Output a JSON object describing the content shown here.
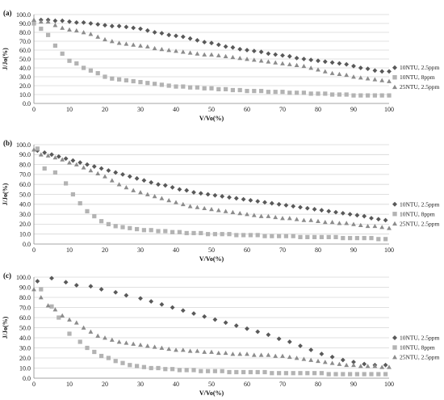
{
  "chart_data": [
    {
      "panel_label": "(a)",
      "type": "scatter",
      "xlabel": "V/Vo(%)",
      "ylabel": "J/Jo(%)",
      "xlim": [
        0,
        100
      ],
      "ylim": [
        0,
        100
      ],
      "x_ticks": [
        0,
        10,
        20,
        30,
        40,
        50,
        60,
        70,
        80,
        90,
        100
      ],
      "y_ticks": [
        "0.0",
        "10.0",
        "20.0",
        "30.0",
        "40.0",
        "50.0",
        "60.0",
        "70.0",
        "80.0",
        "90.0",
        "100.0"
      ],
      "grid": true,
      "legend_position": "right",
      "series": [
        {
          "name": "10NTU, 2.5ppm",
          "marker": "diamond",
          "color": "#595959",
          "x": [
            0,
            2,
            4,
            6,
            8,
            10,
            12,
            14,
            16,
            18,
            20,
            22,
            24,
            26,
            28,
            30,
            32,
            34,
            36,
            38,
            40,
            42,
            44,
            46,
            48,
            50,
            52,
            54,
            56,
            58,
            60,
            62,
            64,
            66,
            68,
            70,
            72,
            74,
            76,
            78,
            80,
            82,
            84,
            86,
            88,
            90,
            92,
            94,
            96,
            98,
            100
          ],
          "y": [
            92,
            94,
            94,
            93,
            93,
            92,
            91,
            91,
            90,
            89,
            88,
            87,
            87,
            86,
            85,
            84,
            82,
            80,
            79,
            77,
            76,
            75,
            73,
            71,
            69,
            68,
            66,
            64,
            63,
            61,
            60,
            59,
            58,
            56,
            55,
            54,
            53,
            51,
            50,
            49,
            48,
            47,
            46,
            45,
            44,
            42,
            40,
            39,
            37,
            36,
            36
          ]
        },
        {
          "name": "10NTU, 8ppm",
          "marker": "square",
          "color": "#b3b3b3",
          "x": [
            0,
            2,
            4,
            6,
            8,
            10,
            12,
            14,
            16,
            18,
            20,
            22,
            24,
            26,
            28,
            30,
            32,
            34,
            36,
            38,
            40,
            42,
            44,
            46,
            48,
            50,
            52,
            54,
            56,
            58,
            60,
            62,
            64,
            66,
            68,
            70,
            72,
            74,
            76,
            78,
            80,
            82,
            84,
            86,
            88,
            90,
            92,
            94,
            96,
            98,
            100
          ],
          "y": [
            90,
            84,
            77,
            65,
            56,
            48,
            45,
            40,
            37,
            34,
            30,
            28,
            27,
            26,
            25,
            24,
            23,
            22,
            21,
            20,
            19,
            19,
            18,
            18,
            17,
            17,
            16,
            16,
            15,
            15,
            14,
            14,
            14,
            13,
            13,
            13,
            12,
            12,
            12,
            11,
            11,
            11,
            10,
            10,
            10,
            9,
            9,
            9,
            9,
            9,
            9
          ]
        },
        {
          "name": "25NTU, 2.5ppm",
          "marker": "triangle",
          "color": "#8c8c8c",
          "x": [
            0,
            2,
            4,
            6,
            8,
            10,
            12,
            14,
            16,
            18,
            20,
            22,
            24,
            26,
            28,
            30,
            32,
            34,
            36,
            38,
            40,
            42,
            44,
            46,
            48,
            50,
            52,
            54,
            56,
            58,
            60,
            62,
            64,
            66,
            68,
            70,
            72,
            74,
            76,
            78,
            80,
            82,
            84,
            86,
            88,
            90,
            92,
            94,
            96,
            98,
            100
          ],
          "y": [
            94,
            92,
            92,
            88,
            85,
            83,
            82,
            80,
            78,
            75,
            72,
            70,
            68,
            67,
            66,
            65,
            64,
            62,
            61,
            60,
            59,
            58,
            57,
            56,
            55,
            55,
            54,
            53,
            52,
            51,
            50,
            49,
            48,
            47,
            46,
            45,
            44,
            43,
            42,
            40,
            38,
            36,
            34,
            33,
            32,
            30,
            29,
            28,
            27,
            26,
            25
          ]
        }
      ]
    },
    {
      "panel_label": "(b)",
      "type": "scatter",
      "xlabel": "V/Vo(%)",
      "ylabel": "J/Jo(%)",
      "xlim": [
        0,
        100
      ],
      "ylim": [
        0,
        100
      ],
      "x_ticks": [
        0,
        10,
        20,
        30,
        40,
        50,
        60,
        70,
        80,
        90,
        100
      ],
      "y_ticks": [
        "0.0",
        "10.0",
        "20.0",
        "30.0",
        "40.0",
        "50.0",
        "60.0",
        "70.0",
        "80.0",
        "90.0",
        "100.0"
      ],
      "grid": true,
      "legend_position": "right",
      "series": [
        {
          "name": "10NTU, 2.5ppm",
          "marker": "diamond",
          "color": "#595959",
          "x": [
            1,
            3,
            5,
            7,
            9,
            11,
            13,
            15,
            17,
            19,
            21,
            23,
            25,
            27,
            29,
            31,
            33,
            35,
            37,
            39,
            41,
            43,
            45,
            47,
            49,
            51,
            53,
            55,
            57,
            59,
            61,
            63,
            65,
            67,
            69,
            71,
            73,
            75,
            77,
            79,
            81,
            83,
            85,
            87,
            89,
            91,
            93,
            95,
            97,
            99
          ],
          "y": [
            94,
            92,
            90,
            88,
            86,
            84,
            82,
            80,
            78,
            76,
            74,
            72,
            70,
            68,
            66,
            64,
            62,
            60,
            59,
            57,
            55,
            54,
            52,
            51,
            50,
            49,
            48,
            47,
            46,
            45,
            44,
            43,
            42,
            41,
            40,
            39,
            38,
            37,
            36,
            35,
            34,
            33,
            32,
            31,
            30,
            29,
            28,
            26,
            25,
            24
          ]
        },
        {
          "name": "10NTU, 8ppm",
          "marker": "square",
          "color": "#b3b3b3",
          "x": [
            1,
            3,
            6,
            9,
            11,
            13,
            15,
            17,
            19,
            21,
            23,
            25,
            27,
            29,
            31,
            33,
            35,
            37,
            39,
            41,
            43,
            45,
            47,
            49,
            51,
            53,
            55,
            57,
            59,
            61,
            63,
            65,
            67,
            69,
            71,
            73,
            75,
            77,
            79,
            81,
            83,
            85,
            87,
            89,
            91,
            93,
            95,
            97,
            99
          ],
          "y": [
            96,
            76,
            72,
            61,
            50,
            41,
            33,
            28,
            23,
            20,
            18,
            17,
            16,
            15,
            14,
            14,
            13,
            13,
            12,
            12,
            11,
            11,
            11,
            10,
            10,
            10,
            10,
            9,
            9,
            9,
            9,
            8,
            8,
            8,
            8,
            8,
            7,
            7,
            7,
            7,
            7,
            7,
            6,
            6,
            6,
            6,
            6,
            5,
            5
          ]
        },
        {
          "name": "25NTU, 2.5ppm",
          "marker": "triangle",
          "color": "#8c8c8c",
          "x": [
            0,
            2,
            4,
            6,
            8,
            10,
            12,
            14,
            16,
            18,
            20,
            22,
            24,
            26,
            28,
            30,
            32,
            34,
            36,
            38,
            40,
            42,
            44,
            46,
            48,
            50,
            52,
            54,
            56,
            58,
            60,
            62,
            64,
            66,
            68,
            70,
            72,
            74,
            76,
            78,
            80,
            82,
            84,
            86,
            88,
            90,
            92,
            94,
            96,
            98,
            100
          ],
          "y": [
            95,
            90,
            89,
            87,
            85,
            82,
            80,
            77,
            74,
            71,
            68,
            64,
            60,
            57,
            54,
            52,
            50,
            48,
            46,
            44,
            42,
            40,
            38,
            37,
            36,
            35,
            34,
            33,
            32,
            31,
            30,
            29,
            28,
            28,
            27,
            26,
            26,
            25,
            24,
            24,
            23,
            22,
            22,
            21,
            21,
            20,
            19,
            18,
            18,
            17,
            16
          ]
        }
      ]
    },
    {
      "panel_label": "(c)",
      "type": "scatter",
      "xlabel": "V/Vo(%)",
      "ylabel": "J/Jo(%)",
      "xlim": [
        0,
        100
      ],
      "ylim": [
        0,
        100
      ],
      "x_ticks": [
        0,
        10,
        20,
        30,
        40,
        50,
        60,
        70,
        80,
        90,
        100
      ],
      "y_ticks": [
        "0.0",
        "10.0",
        "20.0",
        "30.0",
        "40.0",
        "50.0",
        "60.0",
        "70.0",
        "80.0",
        "90.0",
        "100.0"
      ],
      "grid": true,
      "legend_position": "right",
      "series": [
        {
          "name": "10NTU, 2.5ppm",
          "marker": "diamond",
          "color": "#595959",
          "x": [
            1,
            5,
            9,
            12,
            16,
            19,
            23,
            26,
            30,
            33,
            36,
            39,
            42,
            45,
            48,
            51,
            54,
            57,
            60,
            63,
            66,
            69,
            72,
            75,
            78,
            81,
            84,
            87,
            90,
            93,
            96,
            99
          ],
          "y": [
            96,
            99,
            95,
            92,
            91,
            88,
            85,
            82,
            79,
            76,
            73,
            70,
            67,
            64,
            61,
            58,
            55,
            52,
            49,
            46,
            43,
            39,
            36,
            32,
            28,
            24,
            21,
            18,
            16,
            14,
            13,
            13
          ]
        },
        {
          "name": "10NTU, 8ppm",
          "marker": "square",
          "color": "#b3b3b3",
          "x": [
            2,
            5,
            7,
            10,
            13,
            15,
            17,
            19,
            21,
            23,
            25,
            27,
            29,
            31,
            33,
            35,
            37,
            39,
            41,
            43,
            45,
            47,
            49,
            51,
            53,
            55,
            57,
            59,
            61,
            63,
            65,
            67,
            69,
            71,
            73,
            75,
            77,
            79,
            81,
            83,
            85,
            87,
            89,
            91,
            93,
            95,
            97,
            99
          ],
          "y": [
            88,
            71,
            60,
            44,
            36,
            30,
            26,
            22,
            20,
            17,
            15,
            13,
            12,
            11,
            10,
            10,
            9,
            9,
            8,
            8,
            8,
            7,
            7,
            7,
            7,
            6,
            6,
            6,
            6,
            6,
            6,
            5,
            5,
            5,
            5,
            5,
            5,
            5,
            5,
            4,
            4,
            4,
            4,
            4,
            4,
            4,
            4,
            4
          ]
        },
        {
          "name": "25NTU, 2.5ppm",
          "marker": "triangle",
          "color": "#8c8c8c",
          "x": [
            0,
            2,
            4,
            6,
            8,
            10,
            12,
            14,
            16,
            18,
            20,
            22,
            24,
            26,
            28,
            30,
            32,
            34,
            36,
            38,
            40,
            42,
            44,
            46,
            48,
            50,
            52,
            54,
            56,
            58,
            60,
            62,
            64,
            66,
            68,
            70,
            72,
            74,
            76,
            78,
            80,
            82,
            84,
            86,
            88,
            90,
            92,
            94,
            96,
            98,
            100
          ],
          "y": [
            88,
            80,
            72,
            68,
            62,
            58,
            55,
            50,
            46,
            42,
            40,
            38,
            36,
            35,
            34,
            33,
            32,
            31,
            30,
            29,
            28,
            28,
            27,
            27,
            26,
            26,
            25,
            25,
            24,
            24,
            24,
            23,
            23,
            23,
            22,
            22,
            21,
            20,
            19,
            18,
            17,
            16,
            15,
            14,
            13,
            13,
            12,
            12,
            12,
            11,
            11
          ]
        }
      ]
    }
  ]
}
